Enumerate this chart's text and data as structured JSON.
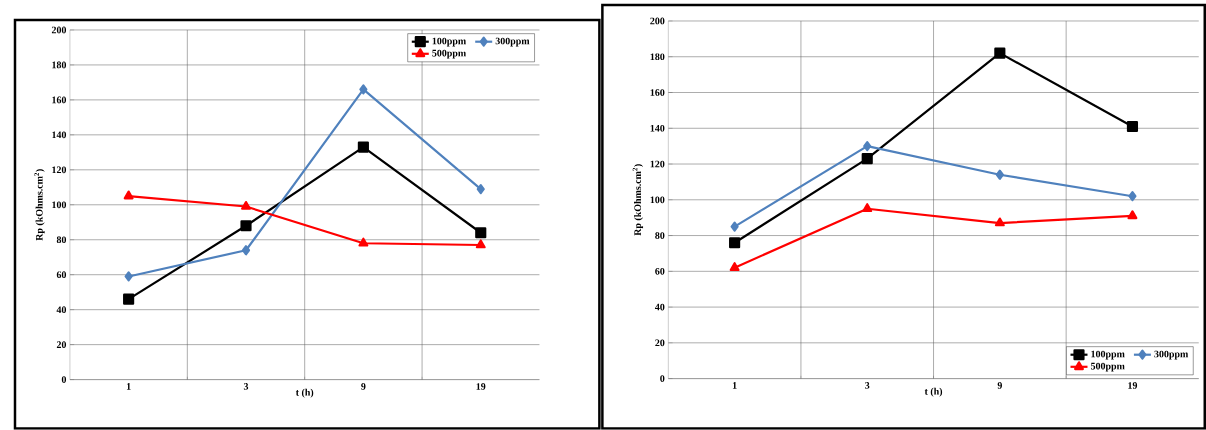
{
  "chart_data": [
    {
      "type": "line",
      "categories": [
        "1",
        "3",
        "9",
        "19"
      ],
      "xlabel": "t (h)",
      "ylabel": "Rp (kOhms.cm$^{2}$)",
      "ylim": [
        0,
        200
      ],
      "yticks": [
        0,
        20,
        40,
        60,
        80,
        100,
        120,
        140,
        160,
        180,
        200
      ],
      "grid": true,
      "legend": "top right",
      "series": [
        {
          "name": "100ppm",
          "color": "#000000",
          "marker": "square",
          "values": [
            46,
            88,
            133,
            84
          ]
        },
        {
          "name": "300ppm",
          "color": "#4f81bd",
          "marker": "diamond",
          "values": [
            59,
            74,
            166,
            109
          ]
        },
        {
          "name": "500ppm",
          "color": "#ff0000",
          "marker": "triangle",
          "values": [
            105,
            99,
            78,
            77
          ]
        }
      ]
    },
    {
      "type": "line",
      "categories": [
        "1",
        "3",
        "9",
        "19"
      ],
      "xlabel": "t (h)",
      "ylabel": "Rp (kOhms.cm$^{2}$)",
      "ylim": [
        0,
        200
      ],
      "yticks": [
        0,
        20,
        40,
        60,
        80,
        100,
        120,
        140,
        160,
        180,
        200
      ],
      "grid": true,
      "legend": "bottom right",
      "series": [
        {
          "name": "100ppm",
          "color": "#000000",
          "marker": "square",
          "values": [
            76,
            123,
            182,
            141
          ]
        },
        {
          "name": "300ppm",
          "color": "#4f81bd",
          "marker": "diamond",
          "values": [
            85,
            130,
            114,
            102
          ]
        },
        {
          "name": "500ppm",
          "color": "#ff0000",
          "marker": "triangle",
          "values": [
            62,
            95,
            87,
            91
          ]
        }
      ]
    }
  ]
}
